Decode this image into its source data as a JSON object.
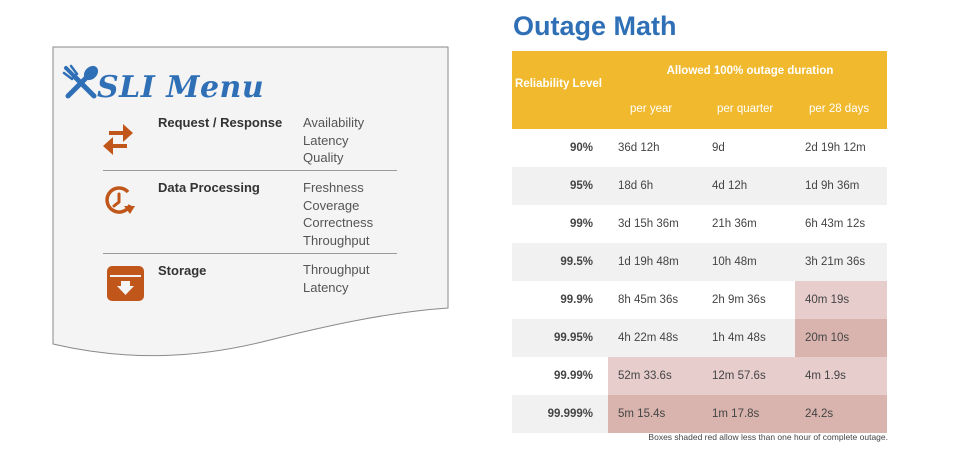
{
  "menu": {
    "title": "SLI Menu",
    "icons": {
      "logo": "crossed-fork-spoon-icon"
    },
    "categories": [
      {
        "label": "Request / Response",
        "icon": "bidirectional-arrows-icon",
        "color": "#c0561a",
        "metrics": [
          "Availability",
          "Latency",
          "Quality"
        ]
      },
      {
        "label": "Data Processing",
        "icon": "clock-refresh-icon",
        "color": "#c0561a",
        "metrics": [
          "Freshness",
          "Coverage",
          "Correctness",
          "Throughput"
        ]
      },
      {
        "label": "Storage",
        "icon": "archive-box-icon",
        "color": "#c0561a",
        "metrics": [
          "Throughput",
          "Latency"
        ]
      }
    ]
  },
  "outage": {
    "title": "Outage Math",
    "header": {
      "reliability": "Reliability Level",
      "allowed": "Allowed 100% outage duration",
      "columns": [
        "per year",
        "per quarter",
        "per 28 days"
      ]
    },
    "rows": [
      {
        "level": "90%",
        "values": [
          "36d 12h",
          "9d",
          "2d 19h 12m"
        ],
        "red": [
          false,
          false,
          false
        ]
      },
      {
        "level": "95%",
        "values": [
          "18d 6h",
          "4d 12h",
          "1d 9h 36m"
        ],
        "red": [
          false,
          false,
          false
        ]
      },
      {
        "level": "99%",
        "values": [
          "3d 15h 36m",
          "21h 36m",
          "6h 43m 12s"
        ],
        "red": [
          false,
          false,
          false
        ]
      },
      {
        "level": "99.5%",
        "values": [
          "1d 19h 48m",
          "10h 48m",
          "3h 21m 36s"
        ],
        "red": [
          false,
          false,
          false
        ]
      },
      {
        "level": "99.9%",
        "values": [
          "8h 45m 36s",
          "2h 9m 36s",
          "40m 19s"
        ],
        "red": [
          false,
          false,
          true
        ]
      },
      {
        "level": "99.95%",
        "values": [
          "4h 22m 48s",
          "1h 4m 48s",
          "20m 10s"
        ],
        "red": [
          false,
          false,
          true
        ]
      },
      {
        "level": "99.99%",
        "values": [
          "52m 33.6s",
          "12m 57.6s",
          "4m 1.9s"
        ],
        "red": [
          true,
          true,
          true
        ]
      },
      {
        "level": "99.999%",
        "values": [
          "5m 15.4s",
          "1m 17.8s",
          "24.2s"
        ],
        "red": [
          true,
          true,
          true
        ]
      }
    ],
    "note": "Boxes shaded red allow less than one hour of complete outage.",
    "colors": {
      "header": "#f0b92e",
      "title": "#2f6fb6",
      "red_light": "#e8cdcd",
      "red_dark": "#d9b4ae",
      "row_shade": "#f1f1f1"
    }
  }
}
